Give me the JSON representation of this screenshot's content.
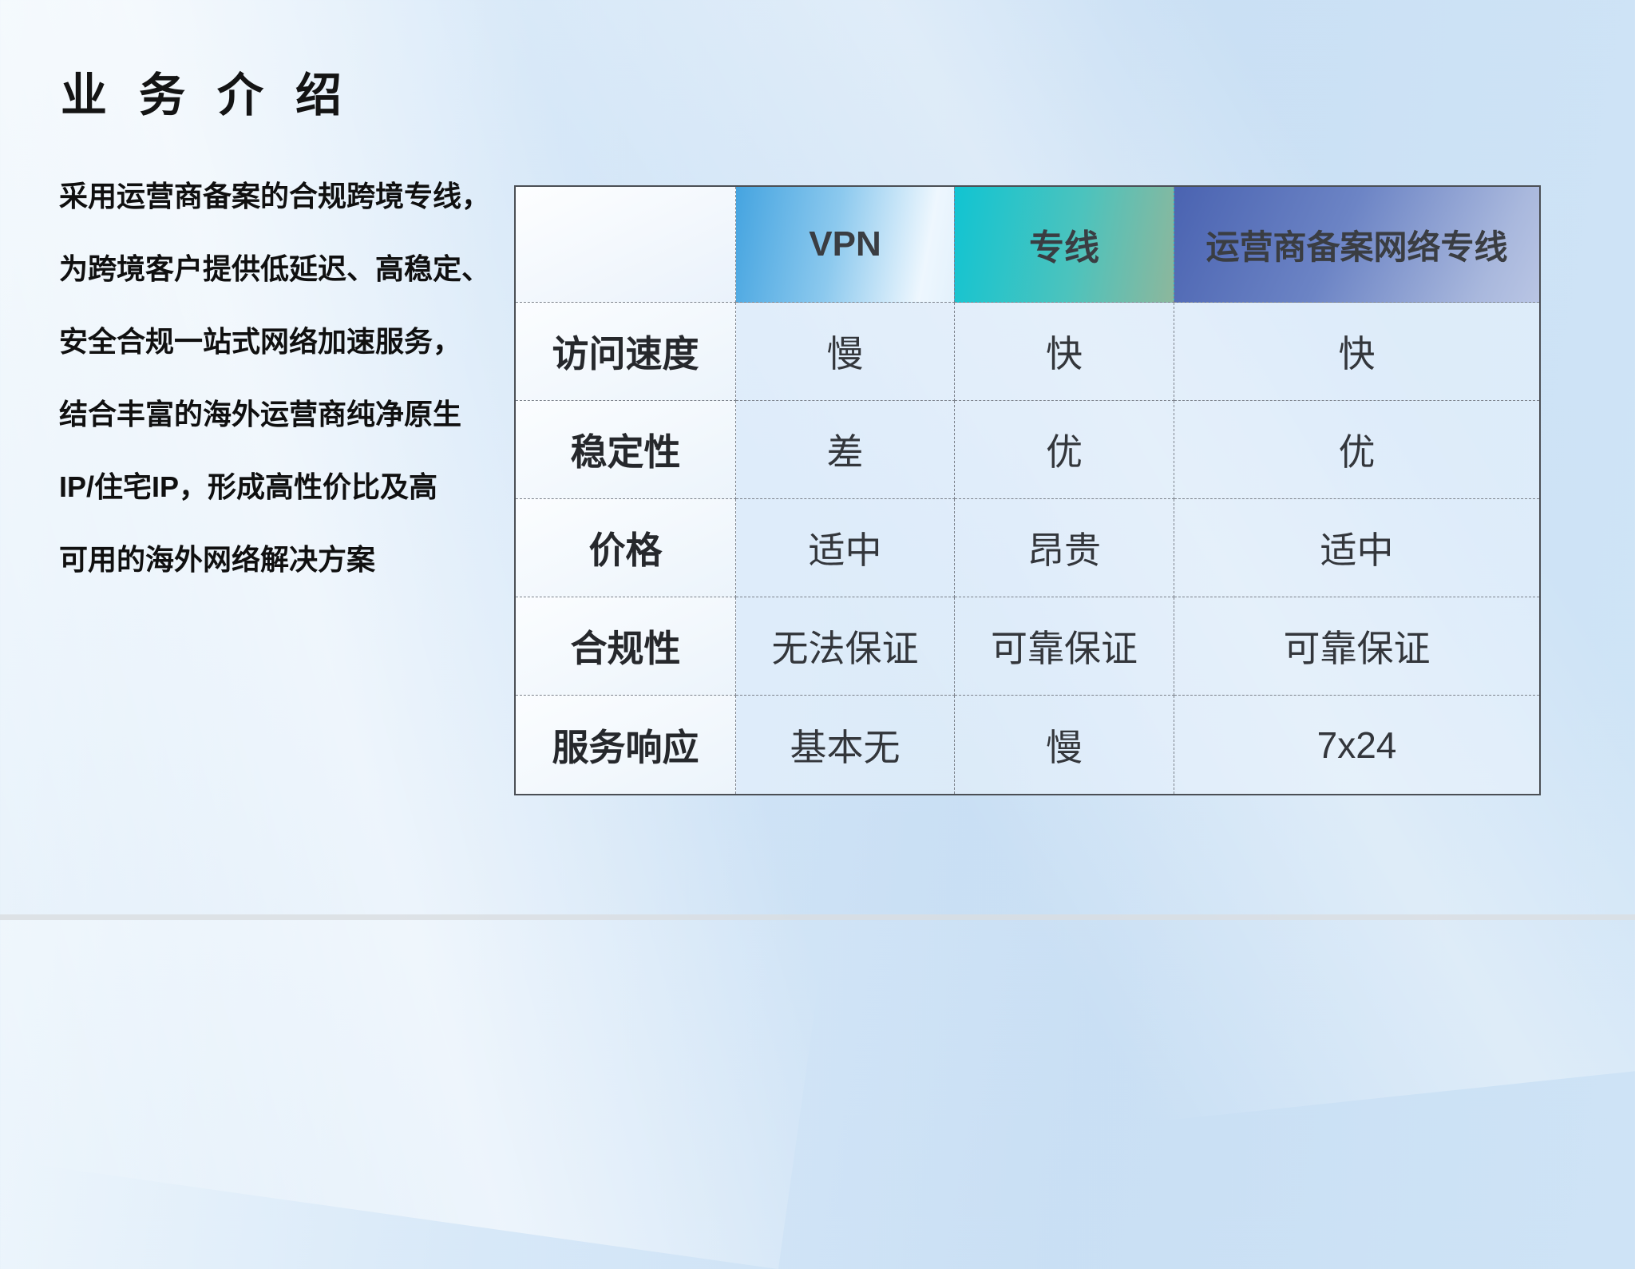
{
  "title": "业务介绍",
  "intro": {
    "lines": [
      "采用运营商备案的合规跨境专线，",
      "为跨境客户提供低延迟、高稳定、",
      "安全合规一站式网络加速服务，",
      "结合丰富的海外运营商纯净原生",
      "IP/住宅IP，形成高性价比及高",
      "可用的海外网络解决方案"
    ]
  },
  "table": {
    "columns": [
      "",
      "VPN",
      "专线",
      "运营商备案网络专线"
    ],
    "rows": [
      {
        "label": "访问速度",
        "values": [
          "慢",
          "快",
          "快"
        ]
      },
      {
        "label": "稳定性",
        "values": [
          "差",
          "优",
          "优"
        ]
      },
      {
        "label": "价格",
        "values": [
          "适中",
          "昂贵",
          "适中"
        ]
      },
      {
        "label": "合规性",
        "values": [
          "无法保证",
          "可靠保证",
          "可靠保证"
        ]
      },
      {
        "label": "服务响应",
        "values": [
          "基本无",
          "慢",
          "7x24"
        ]
      }
    ],
    "header_colors": {
      "vpn_start": "#45a4e0",
      "vpn_end": "#e3f1fc",
      "line_start": "#11c4d2",
      "line_end": "#8db79c",
      "carrier_start": "#4a63b1",
      "carrier_end": "#b9c5e4"
    }
  },
  "background": {
    "base": "#cfe4f6"
  }
}
